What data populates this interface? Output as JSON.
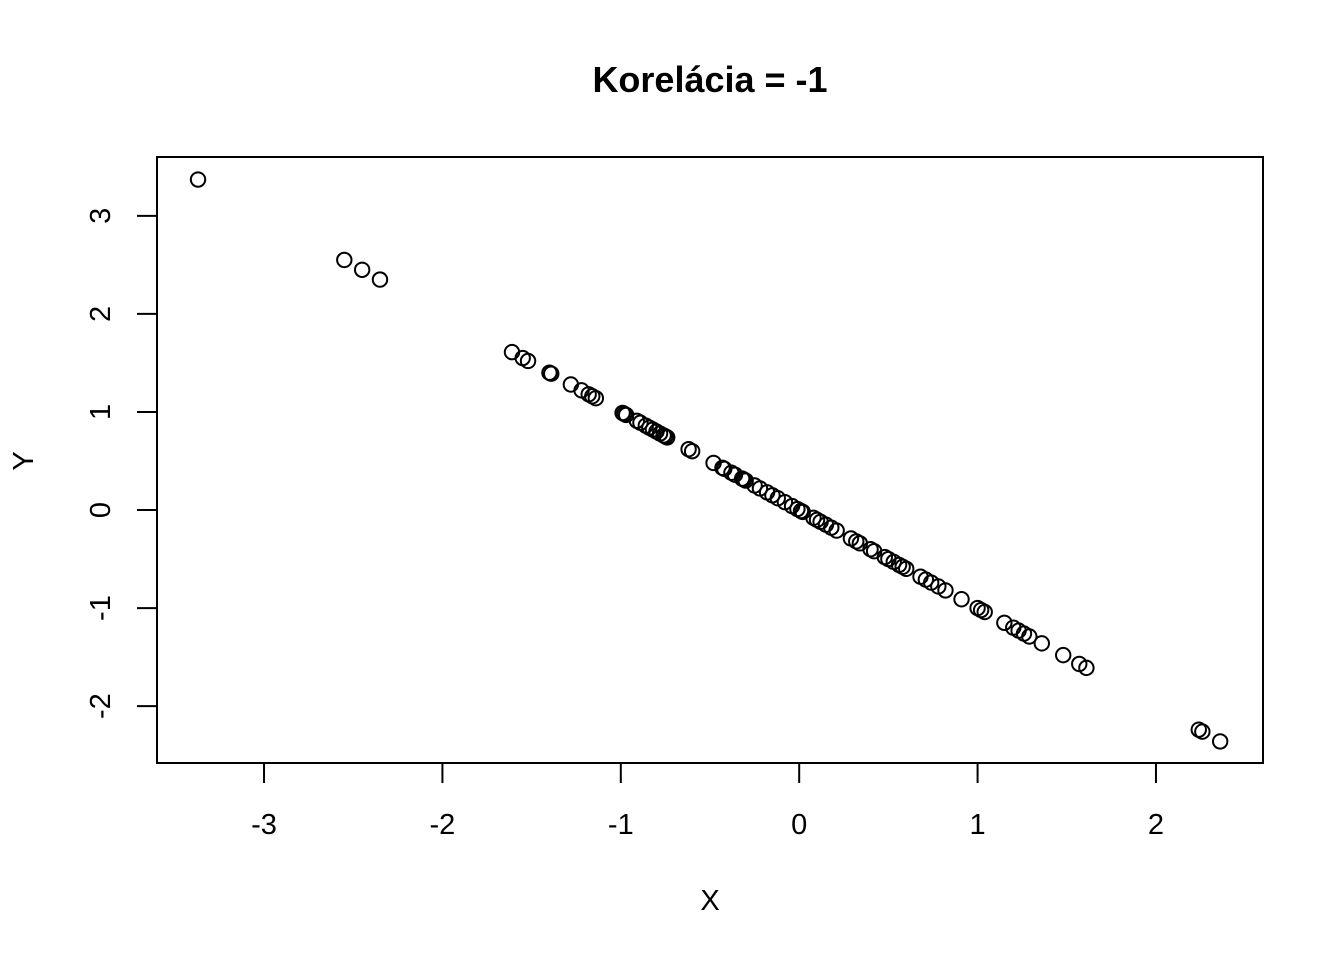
{
  "chart_data": {
    "type": "scatter",
    "title": "Korelácia = -1",
    "xlabel": "X",
    "ylabel": "Y",
    "xlim": [
      -3.6,
      2.6
    ],
    "ylim": [
      -2.58,
      3.6
    ],
    "xticks": [
      -3,
      -2,
      -1,
      0,
      1,
      2
    ],
    "yticks": [
      -2,
      -1,
      0,
      1,
      2,
      3
    ],
    "xtick_labels": [
      "-3",
      "-2",
      "-1",
      "0",
      "1",
      "2"
    ],
    "ytick_labels": [
      "-2",
      "-1",
      "0",
      "1",
      "2",
      "3"
    ],
    "grid": false,
    "marker": "open-circle",
    "points": [
      [
        -3.37,
        3.37
      ],
      [
        -2.55,
        2.55
      ],
      [
        -2.45,
        2.45
      ],
      [
        -2.35,
        2.35
      ],
      [
        -1.61,
        1.61
      ],
      [
        -1.55,
        1.55
      ],
      [
        -1.52,
        1.52
      ],
      [
        -1.4,
        1.4
      ],
      [
        -1.39,
        1.39
      ],
      [
        -1.28,
        1.28
      ],
      [
        -1.22,
        1.22
      ],
      [
        -1.18,
        1.18
      ],
      [
        -1.16,
        1.16
      ],
      [
        -1.14,
        1.14
      ],
      [
        -0.99,
        0.99
      ],
      [
        -0.98,
        0.98
      ],
      [
        -0.97,
        0.97
      ],
      [
        -0.91,
        0.91
      ],
      [
        -0.89,
        0.89
      ],
      [
        -0.86,
        0.86
      ],
      [
        -0.84,
        0.84
      ],
      [
        -0.82,
        0.82
      ],
      [
        -0.8,
        0.8
      ],
      [
        -0.78,
        0.78
      ],
      [
        -0.76,
        0.76
      ],
      [
        -0.75,
        0.75
      ],
      [
        -0.74,
        0.74
      ],
      [
        -0.62,
        0.62
      ],
      [
        -0.6,
        0.6
      ],
      [
        -0.48,
        0.48
      ],
      [
        -0.43,
        0.43
      ],
      [
        -0.42,
        0.42
      ],
      [
        -0.38,
        0.38
      ],
      [
        -0.36,
        0.36
      ],
      [
        -0.32,
        0.32
      ],
      [
        -0.31,
        0.31
      ],
      [
        -0.3,
        0.3
      ],
      [
        -0.25,
        0.25
      ],
      [
        -0.22,
        0.22
      ],
      [
        -0.18,
        0.18
      ],
      [
        -0.15,
        0.15
      ],
      [
        -0.12,
        0.12
      ],
      [
        -0.08,
        0.08
      ],
      [
        -0.04,
        0.04
      ],
      [
        -0.01,
        0.01
      ],
      [
        0.01,
        -0.01
      ],
      [
        0.02,
        -0.02
      ],
      [
        0.08,
        -0.08
      ],
      [
        0.1,
        -0.1
      ],
      [
        0.12,
        -0.12
      ],
      [
        0.15,
        -0.15
      ],
      [
        0.18,
        -0.18
      ],
      [
        0.21,
        -0.21
      ],
      [
        0.29,
        -0.29
      ],
      [
        0.32,
        -0.32
      ],
      [
        0.34,
        -0.34
      ],
      [
        0.4,
        -0.4
      ],
      [
        0.42,
        -0.42
      ],
      [
        0.48,
        -0.48
      ],
      [
        0.5,
        -0.5
      ],
      [
        0.53,
        -0.53
      ],
      [
        0.56,
        -0.56
      ],
      [
        0.58,
        -0.58
      ],
      [
        0.6,
        -0.6
      ],
      [
        0.68,
        -0.68
      ],
      [
        0.71,
        -0.71
      ],
      [
        0.74,
        -0.74
      ],
      [
        0.78,
        -0.78
      ],
      [
        0.82,
        -0.82
      ],
      [
        0.91,
        -0.91
      ],
      [
        1.0,
        -1.0
      ],
      [
        1.02,
        -1.02
      ],
      [
        1.04,
        -1.04
      ],
      [
        1.15,
        -1.15
      ],
      [
        1.2,
        -1.2
      ],
      [
        1.23,
        -1.23
      ],
      [
        1.26,
        -1.26
      ],
      [
        1.29,
        -1.29
      ],
      [
        1.36,
        -1.36
      ],
      [
        1.48,
        -1.48
      ],
      [
        1.57,
        -1.57
      ],
      [
        1.61,
        -1.61
      ],
      [
        2.24,
        -2.24
      ],
      [
        2.26,
        -2.26
      ],
      [
        2.36,
        -2.36
      ]
    ]
  }
}
